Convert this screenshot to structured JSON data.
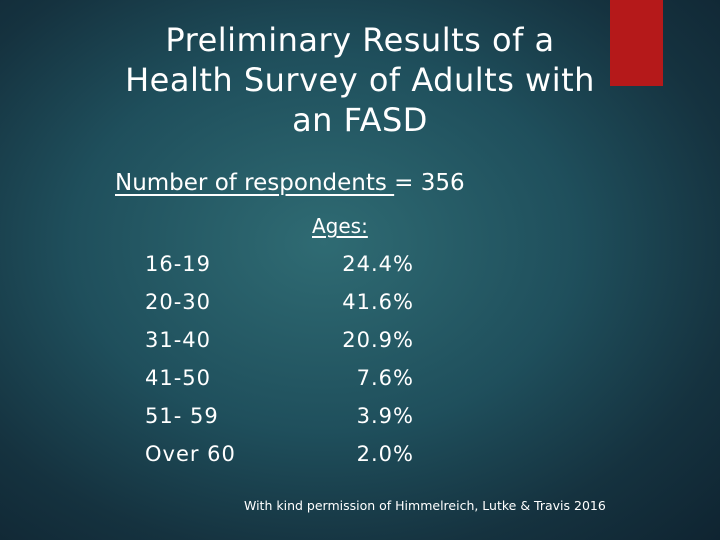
{
  "title": {
    "line1": "Preliminary Results of a",
    "line2": "Health Survey of Adults with",
    "line3": "an FASD"
  },
  "respondents": {
    "label": "Number of respondents ",
    "equals": "= 356"
  },
  "ages": {
    "header": "Ages:",
    "rows": [
      {
        "label": "16-19",
        "value": "24.4%"
      },
      {
        "label": "20-30",
        "value": "41.6%"
      },
      {
        "label": "31-40",
        "value": "20.9%"
      },
      {
        "label": "41-50",
        "value": "7.6%"
      },
      {
        "label": "51- 59",
        "value": "3.9%"
      },
      {
        "label": "Over 60",
        "value": "2.0%"
      }
    ]
  },
  "footer": "With kind permission of Himmelreich, Lutke  & Travis 2016",
  "colors": {
    "accent": "#b5191a",
    "background": "#1f4f5c",
    "text": "#ffffff"
  }
}
